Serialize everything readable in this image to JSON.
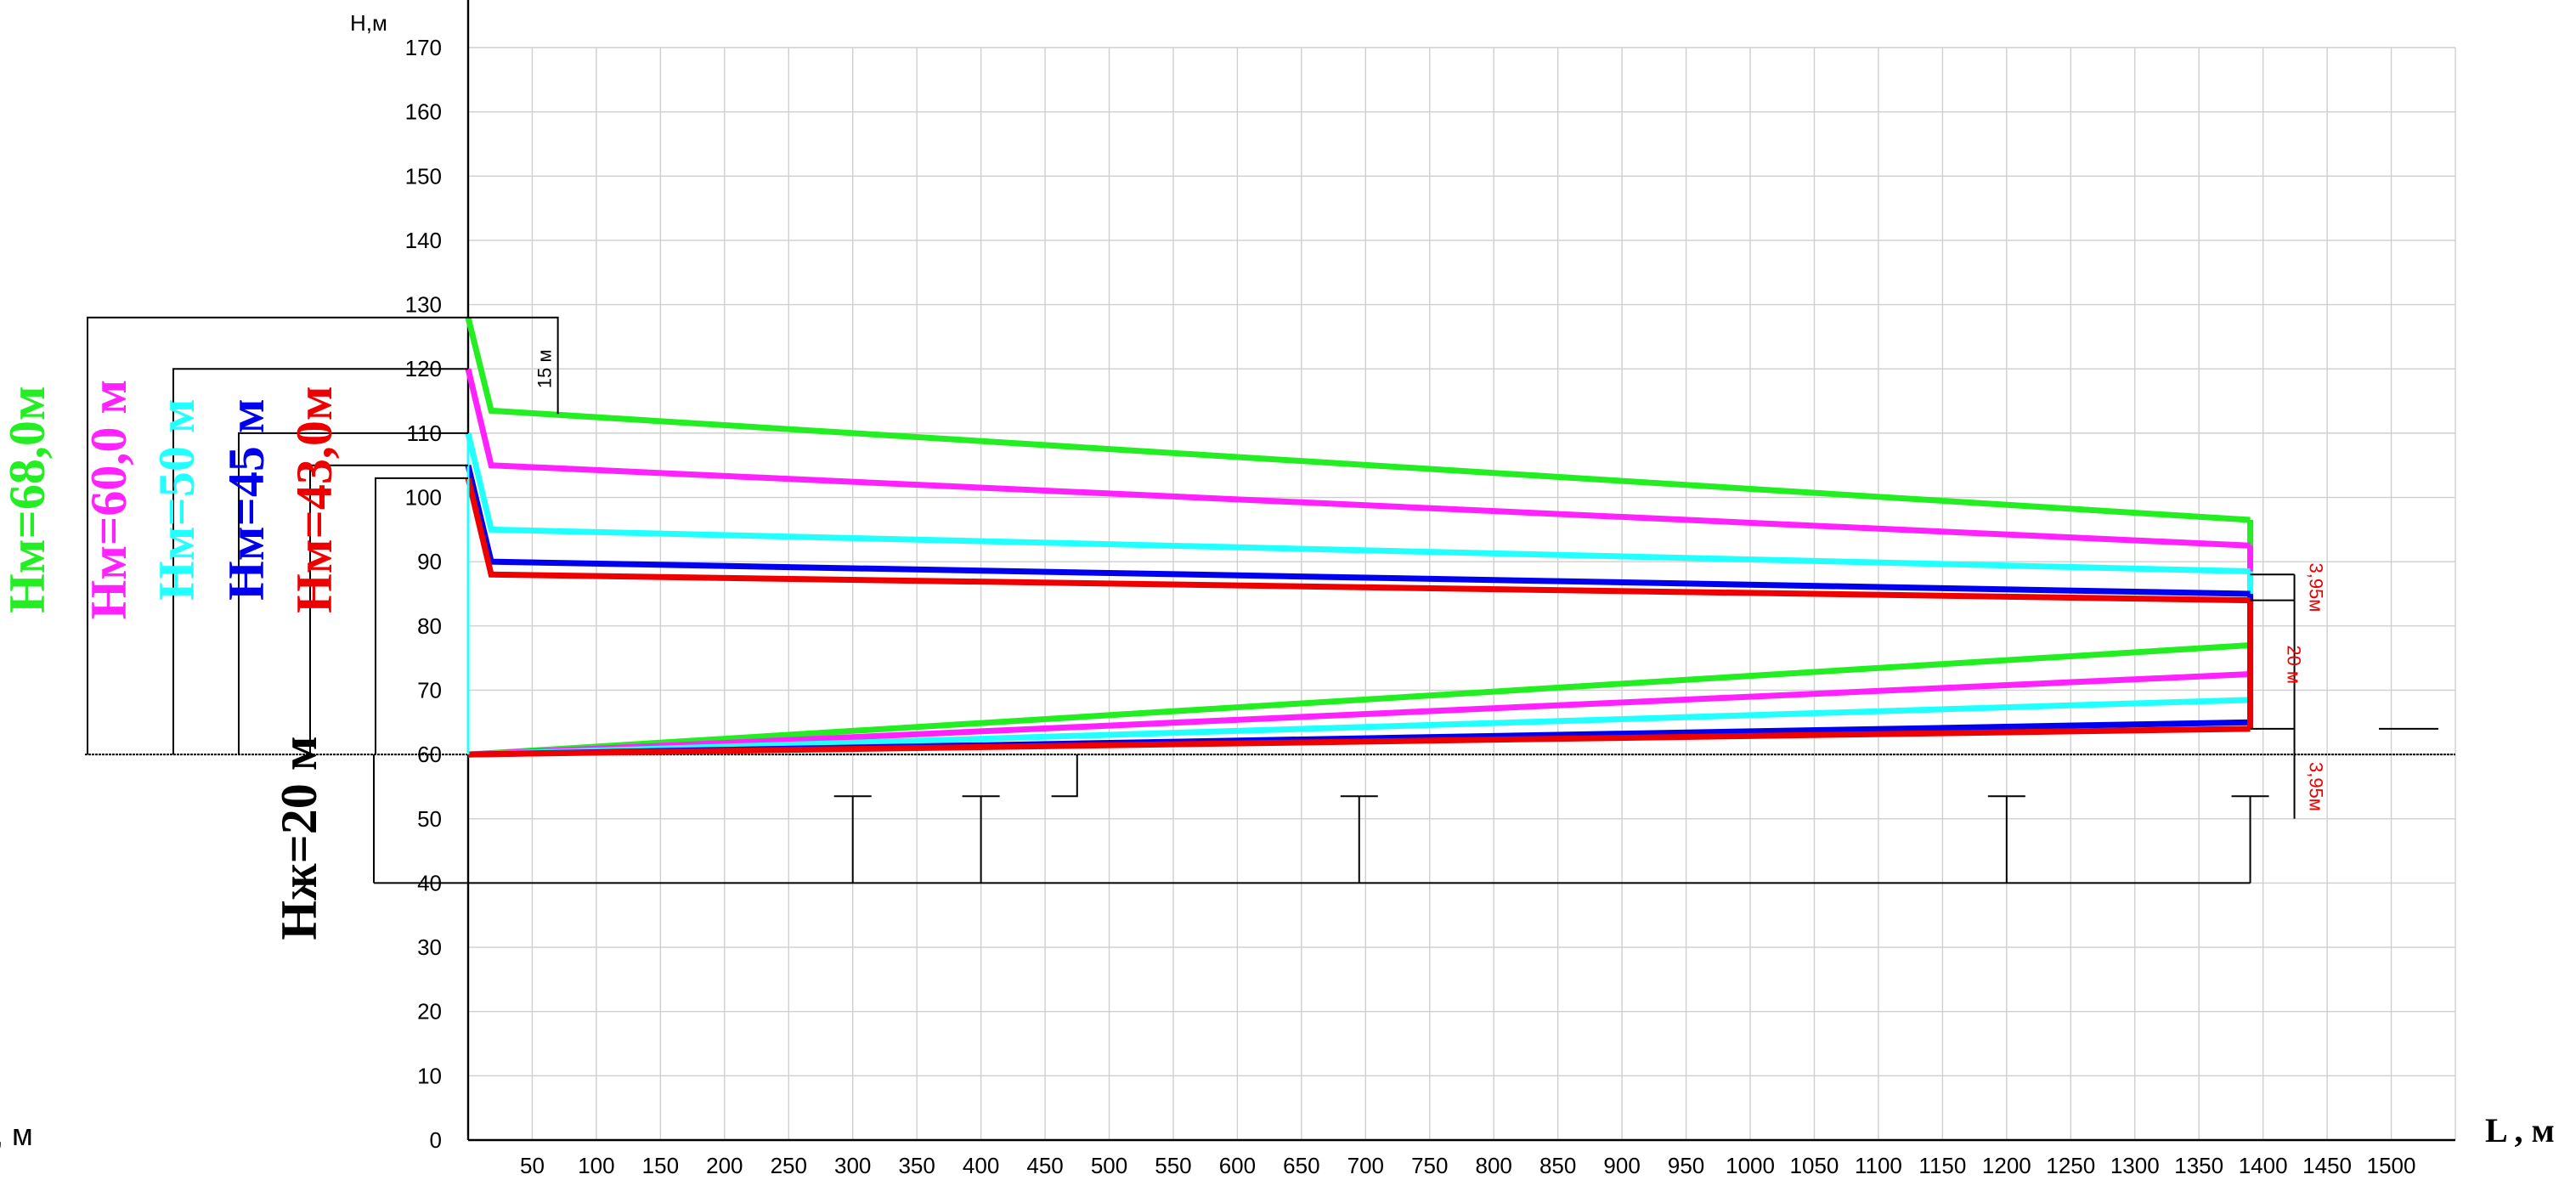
{
  "chart_data": {
    "type": "line",
    "ylabel": "H,м",
    "xlabel": "L , м",
    "ylabel_left_partial": ", м",
    "xlim": [
      0,
      1550
    ],
    "ylim": [
      0,
      170
    ],
    "x_ticks": [
      50,
      100,
      150,
      200,
      250,
      300,
      350,
      400,
      450,
      500,
      550,
      600,
      650,
      700,
      750,
      800,
      850,
      900,
      950,
      1000,
      1050,
      1100,
      1150,
      1200,
      1250,
      1300,
      1350,
      1400,
      1450,
      1500
    ],
    "y_ticks": [
      0,
      10,
      20,
      30,
      40,
      50,
      60,
      70,
      80,
      90,
      100,
      110,
      120,
      130,
      140,
      150,
      160,
      170
    ],
    "grid": true,
    "ground_level": 60,
    "series": [
      {
        "name": "Нм=68,0м",
        "color": "#22ee22",
        "upper": [
          [
            0,
            128
          ],
          [
            18,
            113.5
          ],
          [
            1390,
            96.5
          ]
        ],
        "lower": [
          [
            0,
            60
          ],
          [
            1390,
            77
          ]
        ]
      },
      {
        "name": "Нм=60,0 м",
        "color": "#ff22ff",
        "upper": [
          [
            0,
            120
          ],
          [
            18,
            105
          ],
          [
            1390,
            92.5
          ]
        ],
        "lower": [
          [
            0,
            60
          ],
          [
            1390,
            72.5
          ]
        ]
      },
      {
        "name": "Нм=50 м",
        "color": "#22ffff",
        "upper": [
          [
            0,
            110
          ],
          [
            18,
            95
          ],
          [
            1390,
            88.5
          ]
        ],
        "lower": [
          [
            0,
            60
          ],
          [
            1390,
            68.5
          ]
        ]
      },
      {
        "name": "Нм=45 м",
        "color": "#0000ee",
        "upper": [
          [
            0,
            105
          ],
          [
            18,
            90
          ],
          [
            1390,
            85
          ]
        ],
        "lower": [
          [
            0,
            60
          ],
          [
            1390,
            65
          ]
        ]
      },
      {
        "name": "Нм=43,0м",
        "color": "#ee0000",
        "upper": [
          [
            0,
            103
          ],
          [
            18,
            88
          ],
          [
            1390,
            84
          ]
        ],
        "lower": [
          [
            0,
            60
          ],
          [
            1390,
            64
          ]
        ]
      }
    ],
    "annotations": {
      "left_label": "Нж=20 м",
      "dim_15": "15 м",
      "dim_395_top": "3,95м",
      "dim_20": "20 м",
      "dim_395_bottom": "3,95м"
    },
    "building_base": 40,
    "branch_x": [
      300,
      400,
      695,
      1200,
      1390
    ],
    "branch_top": 53.5,
    "short_branch": {
      "x_from": 455,
      "x_to": 475,
      "y_top": 60,
      "y_bottom": 53.5
    }
  }
}
